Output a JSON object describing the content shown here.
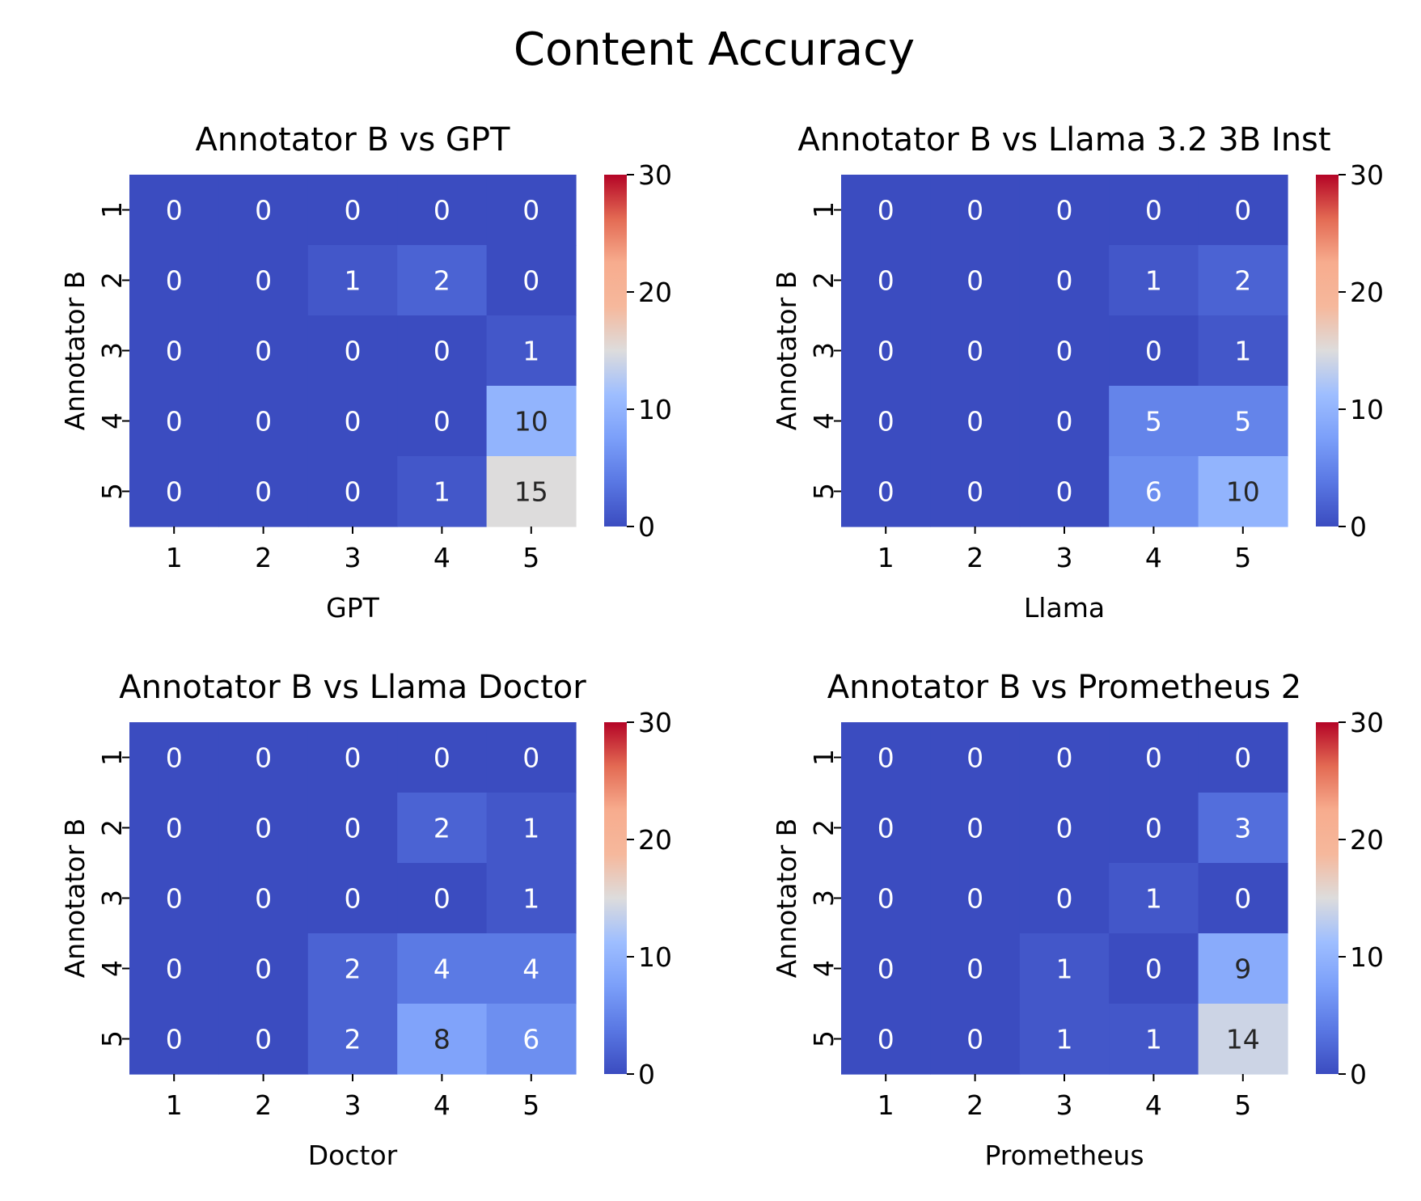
{
  "title": "Content Accuracy",
  "chart_data": [
    {
      "type": "heatmap",
      "title": "Annotator B vs GPT",
      "xlabel": "GPT",
      "ylabel": "Annotator B",
      "x_ticks": [
        "1",
        "2",
        "3",
        "4",
        "5"
      ],
      "y_ticks": [
        "1",
        "2",
        "3",
        "4",
        "5"
      ],
      "values": [
        [
          0,
          0,
          0,
          0,
          0
        ],
        [
          0,
          0,
          1,
          2,
          0
        ],
        [
          0,
          0,
          0,
          0,
          1
        ],
        [
          0,
          0,
          0,
          0,
          10
        ],
        [
          0,
          0,
          0,
          1,
          15
        ]
      ],
      "colorbar": {
        "range": [
          0,
          30
        ],
        "ticks": [
          "0",
          "10",
          "20",
          "30"
        ],
        "colormap": "coolwarm"
      }
    },
    {
      "type": "heatmap",
      "title": "Annotator B vs Llama 3.2 3B Inst",
      "xlabel": "Llama",
      "ylabel": "Annotator B",
      "x_ticks": [
        "1",
        "2",
        "3",
        "4",
        "5"
      ],
      "y_ticks": [
        "1",
        "2",
        "3",
        "4",
        "5"
      ],
      "values": [
        [
          0,
          0,
          0,
          0,
          0
        ],
        [
          0,
          0,
          0,
          1,
          2
        ],
        [
          0,
          0,
          0,
          0,
          1
        ],
        [
          0,
          0,
          0,
          5,
          5
        ],
        [
          0,
          0,
          0,
          6,
          10
        ]
      ],
      "colorbar": {
        "range": [
          0,
          30
        ],
        "ticks": [
          "0",
          "10",
          "20",
          "30"
        ],
        "colormap": "coolwarm"
      }
    },
    {
      "type": "heatmap",
      "title": "Annotator B vs Llama Doctor",
      "xlabel": "Doctor",
      "ylabel": "Annotator B",
      "x_ticks": [
        "1",
        "2",
        "3",
        "4",
        "5"
      ],
      "y_ticks": [
        "1",
        "2",
        "3",
        "4",
        "5"
      ],
      "values": [
        [
          0,
          0,
          0,
          0,
          0
        ],
        [
          0,
          0,
          0,
          2,
          1
        ],
        [
          0,
          0,
          0,
          0,
          1
        ],
        [
          0,
          0,
          2,
          4,
          4
        ],
        [
          0,
          0,
          2,
          8,
          6
        ]
      ],
      "colorbar": {
        "range": [
          0,
          30
        ],
        "ticks": [
          "0",
          "10",
          "20",
          "30"
        ],
        "colormap": "coolwarm"
      }
    },
    {
      "type": "heatmap",
      "title": "Annotator B vs Prometheus 2",
      "xlabel": "Prometheus",
      "ylabel": "Annotator B",
      "x_ticks": [
        "1",
        "2",
        "3",
        "4",
        "5"
      ],
      "y_ticks": [
        "1",
        "2",
        "3",
        "4",
        "5"
      ],
      "values": [
        [
          0,
          0,
          0,
          0,
          0
        ],
        [
          0,
          0,
          0,
          0,
          3
        ],
        [
          0,
          0,
          0,
          1,
          0
        ],
        [
          0,
          0,
          1,
          0,
          9
        ],
        [
          0,
          0,
          1,
          1,
          14
        ]
      ],
      "colorbar": {
        "range": [
          0,
          30
        ],
        "ticks": [
          "0",
          "10",
          "20",
          "30"
        ],
        "colormap": "coolwarm"
      }
    }
  ]
}
